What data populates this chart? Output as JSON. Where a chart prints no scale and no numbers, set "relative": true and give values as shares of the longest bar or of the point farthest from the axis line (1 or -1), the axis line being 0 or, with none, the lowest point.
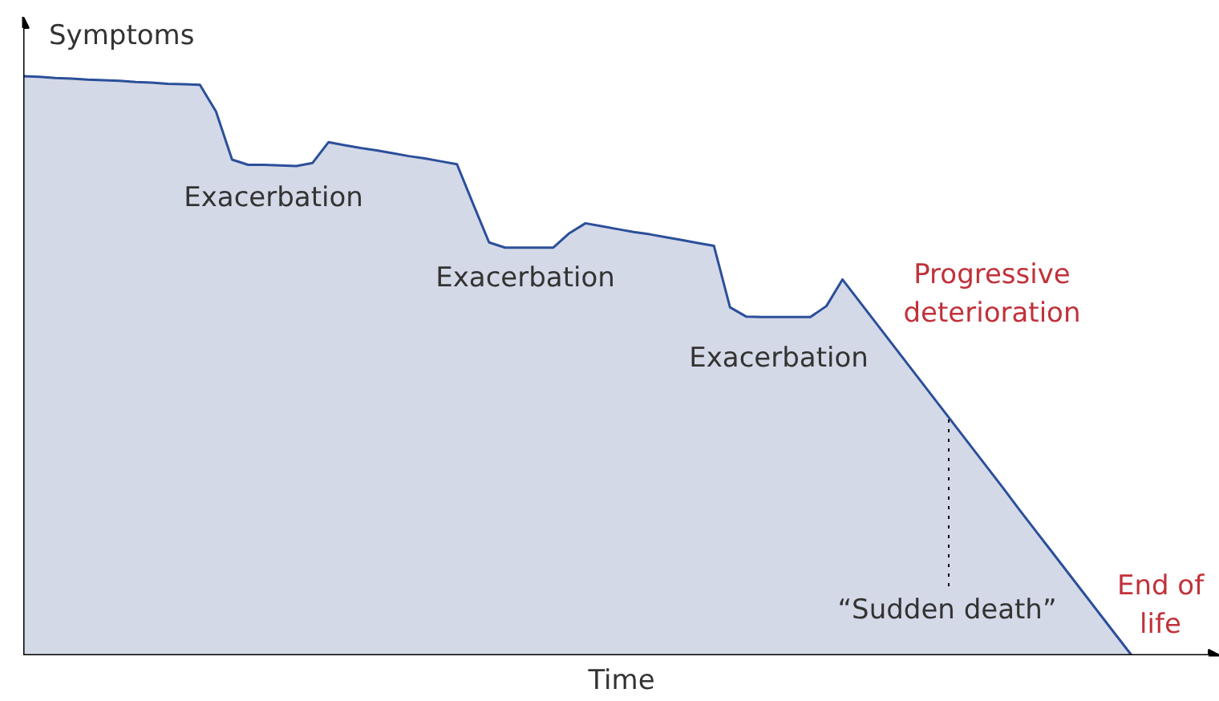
{
  "chart_data": {
    "type": "area",
    "relative": true,
    "xlabel": "Time",
    "ylabel": "Symptoms",
    "grid": false,
    "categories": [
      null,
      null,
      null,
      null,
      null,
      null,
      null,
      null,
      null,
      null,
      null,
      null,
      null,
      null,
      null,
      null,
      null,
      null,
      null,
      null,
      null,
      null,
      null,
      null,
      null,
      null,
      null,
      null,
      null,
      null,
      null,
      null,
      null,
      null,
      null,
      null,
      null,
      null,
      null,
      null,
      null,
      null,
      null,
      null,
      null,
      null,
      null,
      null,
      null,
      null,
      null,
      null,
      null,
      null,
      null,
      null,
      null,
      null,
      null,
      null,
      null,
      null,
      null,
      null,
      null,
      null,
      null,
      null,
      null,
      null
    ],
    "series": [
      {
        "color": "#d4d9e7",
        "values": [
          1,
          0.999,
          0.997,
          0.996,
          0.994,
          0.993,
          0.992,
          0.99,
          0.989,
          0.987,
          0.986,
          0.985,
          0.939,
          0.856,
          0.847,
          0.847,
          0.846,
          0.845,
          0.85,
          0.886,
          0.881,
          0.876,
          0.872,
          0.867,
          0.862,
          0.858,
          0.853,
          0.848,
          0.78,
          0.713,
          0.704,
          0.704,
          0.704,
          0.704,
          0.729,
          0.746,
          0.741,
          0.736,
          0.731,
          0.727,
          0.722,
          0.717,
          0.712,
          0.707,
          0.601,
          0.585,
          0.584,
          0.584,
          0.584,
          0.584,
          0.603,
          0.649,
          0.613,
          0.577,
          0.541,
          0.505,
          0.469,
          0.433,
          0.397,
          0.361,
          0.325,
          0.289,
          0.252,
          0.216,
          0.18,
          0.144,
          0.108,
          0.072,
          0.036,
          0
        ]
      }
    ],
    "annotations": [
      "Exacerbation",
      "Exacerbation",
      "Exacerbation",
      "Progressive deterioration",
      "“Sudden death”",
      "End of life"
    ]
  }
}
